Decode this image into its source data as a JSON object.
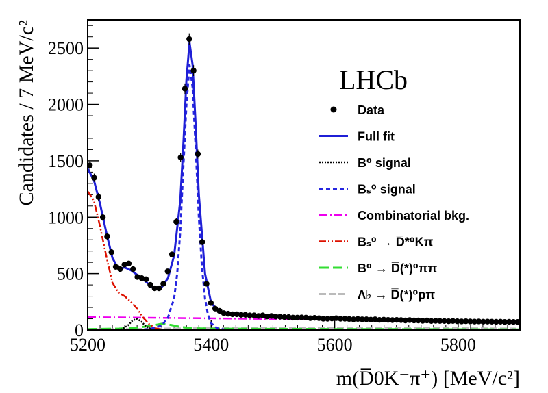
{
  "chart_data": {
    "type": "scatter",
    "experiment_label": "LHCb",
    "xlabel": "m(D̅0K⁻π⁺) [MeV/c²]",
    "ylabel": "Candidates / 7 MeV/c²",
    "xlim": [
      5200,
      5900
    ],
    "ylim": [
      0,
      2750
    ],
    "x_ticks": [
      5200,
      5400,
      5600,
      5800
    ],
    "y_ticks": [
      0,
      500,
      1000,
      1500,
      2000,
      2500
    ],
    "grid": false,
    "legend_position": "right",
    "legend": [
      {
        "key": "data",
        "label": "Data"
      },
      {
        "key": "fit",
        "label": "Full fit"
      },
      {
        "key": "b0sig",
        "label": "B⁰ signal"
      },
      {
        "key": "bssig",
        "label": "Bₛ⁰ signal"
      },
      {
        "key": "comb",
        "label": "Combinatorial bkg."
      },
      {
        "key": "bsbkg",
        "label": "Bₛ⁰ → D̅*⁰Kπ"
      },
      {
        "key": "b0bkg",
        "label": "B⁰ → D̅(*)⁰ππ"
      },
      {
        "key": "lbbkg",
        "label": "Λ♭ → D̅(*)⁰pπ"
      }
    ],
    "series": [
      {
        "key": "data",
        "style": "points",
        "color": "#000000",
        "x": [
          5203.5,
          5210.5,
          5217.5,
          5224.5,
          5231.5,
          5238.5,
          5245.5,
          5252.5,
          5259.5,
          5266.5,
          5273.5,
          5280.5,
          5287.5,
          5294.5,
          5301.5,
          5308.5,
          5315.5,
          5322.5,
          5329.5,
          5336.5,
          5343.5,
          5350.5,
          5357.5,
          5364.5,
          5371.5,
          5378.5,
          5385.5,
          5392.5,
          5399.5,
          5406.5,
          5413.5,
          5420.5,
          5427.5,
          5434.5,
          5441.5,
          5448.5,
          5455.5,
          5462.5,
          5469.5,
          5476.5,
          5483.5,
          5490.5,
          5497.5,
          5504.5,
          5511.5,
          5518.5,
          5525.5,
          5532.5,
          5539.5,
          5546.5,
          5553.5,
          5560.5,
          5567.5,
          5574.5,
          5581.5,
          5588.5,
          5595.5,
          5602.5,
          5609.5,
          5616.5,
          5623.5,
          5630.5,
          5637.5,
          5644.5,
          5651.5,
          5658.5,
          5665.5,
          5672.5,
          5679.5,
          5686.5,
          5693.5,
          5700.5,
          5707.5,
          5714.5,
          5721.5,
          5728.5,
          5735.5,
          5742.5,
          5749.5,
          5756.5,
          5763.5,
          5770.5,
          5777.5,
          5784.5,
          5791.5,
          5798.5,
          5805.5,
          5812.5,
          5819.5,
          5826.5,
          5833.5,
          5840.5,
          5847.5,
          5854.5,
          5861.5,
          5868.5,
          5875.5,
          5882.5,
          5889.5,
          5896.5
        ],
        "y": [
          1460,
          1350,
          1180,
          1000,
          830,
          690,
          560,
          540,
          580,
          590,
          540,
          470,
          460,
          450,
          400,
          370,
          370,
          410,
          520,
          670,
          960,
          1530,
          2140,
          2580,
          2300,
          1560,
          780,
          410,
          240,
          190,
          170,
          150,
          145,
          140,
          140,
          135,
          135,
          130,
          130,
          125,
          130,
          120,
          125,
          120,
          118,
          115,
          115,
          110,
          110,
          112,
          110,
          105,
          108,
          105,
          100,
          100,
          102,
          105,
          100,
          100,
          98,
          95,
          98,
          95,
          95,
          92,
          95,
          90,
          92,
          90,
          88,
          90,
          88,
          85,
          88,
          85,
          85,
          82,
          85,
          80,
          82,
          80,
          80,
          78,
          80,
          78,
          76,
          78,
          76,
          75,
          76,
          74,
          75,
          74,
          73,
          74,
          72,
          73,
          72,
          72
        ]
      },
      {
        "key": "fit",
        "style": "solid",
        "color": "#1f1fd6",
        "x": [
          5200,
          5210,
          5220,
          5230,
          5240,
          5250,
          5260,
          5270,
          5280,
          5290,
          5300,
          5310,
          5320,
          5330,
          5340,
          5350,
          5355,
          5360,
          5365,
          5370,
          5375,
          5380,
          5390,
          5400,
          5410,
          5420,
          5450,
          5500,
          5600,
          5700,
          5800,
          5900
        ],
        "y": [
          1430,
          1330,
          1120,
          870,
          640,
          540,
          555,
          530,
          490,
          450,
          400,
          360,
          380,
          460,
          660,
          1150,
          1650,
          2220,
          2550,
          2350,
          1800,
          1200,
          500,
          240,
          180,
          160,
          140,
          125,
          105,
          92,
          82,
          75
        ]
      },
      {
        "key": "bssig",
        "style": "dashed",
        "color": "#2626e0",
        "x": [
          5280,
          5300,
          5320,
          5330,
          5340,
          5345,
          5350,
          5355,
          5360,
          5365,
          5370,
          5375,
          5380,
          5385,
          5390,
          5395,
          5400,
          5410,
          5420,
          5440,
          5470
        ],
        "y": [
          0,
          8,
          40,
          110,
          280,
          500,
          880,
          1450,
          2000,
          2350,
          2150,
          1600,
          1000,
          560,
          280,
          130,
          60,
          15,
          5,
          1,
          0
        ]
      },
      {
        "key": "b0sig",
        "style": "dotted",
        "color": "#000000",
        "x": [
          5240,
          5255,
          5265,
          5272,
          5279,
          5286,
          5293,
          5303,
          5318
        ],
        "y": [
          0,
          8,
          40,
          80,
          100,
          80,
          40,
          8,
          0
        ]
      },
      {
        "key": "comb",
        "style": "dashdot",
        "color": "#ee00ee",
        "x": [
          5200,
          5900
        ],
        "y": [
          115,
          75
        ]
      },
      {
        "key": "bsbkg",
        "style": "dashdotdot",
        "color": "#dd1100",
        "x": [
          5200,
          5210,
          5220,
          5230,
          5240,
          5250,
          5260,
          5270,
          5280,
          5290,
          5300,
          5310,
          5320,
          5330,
          5340
        ],
        "y": [
          1230,
          1150,
          920,
          660,
          420,
          330,
          300,
          250,
          190,
          110,
          50,
          15,
          4,
          1,
          0
        ]
      },
      {
        "key": "b0bkg",
        "style": "longdash",
        "color": "#33dd33",
        "x": [
          5200,
          5250,
          5280,
          5300,
          5320,
          5335,
          5350,
          5370,
          5400,
          5500,
          5600,
          5700,
          5800,
          5900
        ],
        "y": [
          8,
          12,
          22,
          35,
          55,
          45,
          28,
          15,
          12,
          10,
          8,
          7,
          6,
          5
        ]
      },
      {
        "key": "lbbkg",
        "style": "dashgray",
        "color": "#bbbbbb",
        "x": [
          5200,
          5300,
          5400,
          5500,
          5600,
          5700,
          5800,
          5900
        ],
        "y": [
          5,
          10,
          18,
          20,
          20,
          18,
          15,
          12
        ]
      }
    ]
  }
}
